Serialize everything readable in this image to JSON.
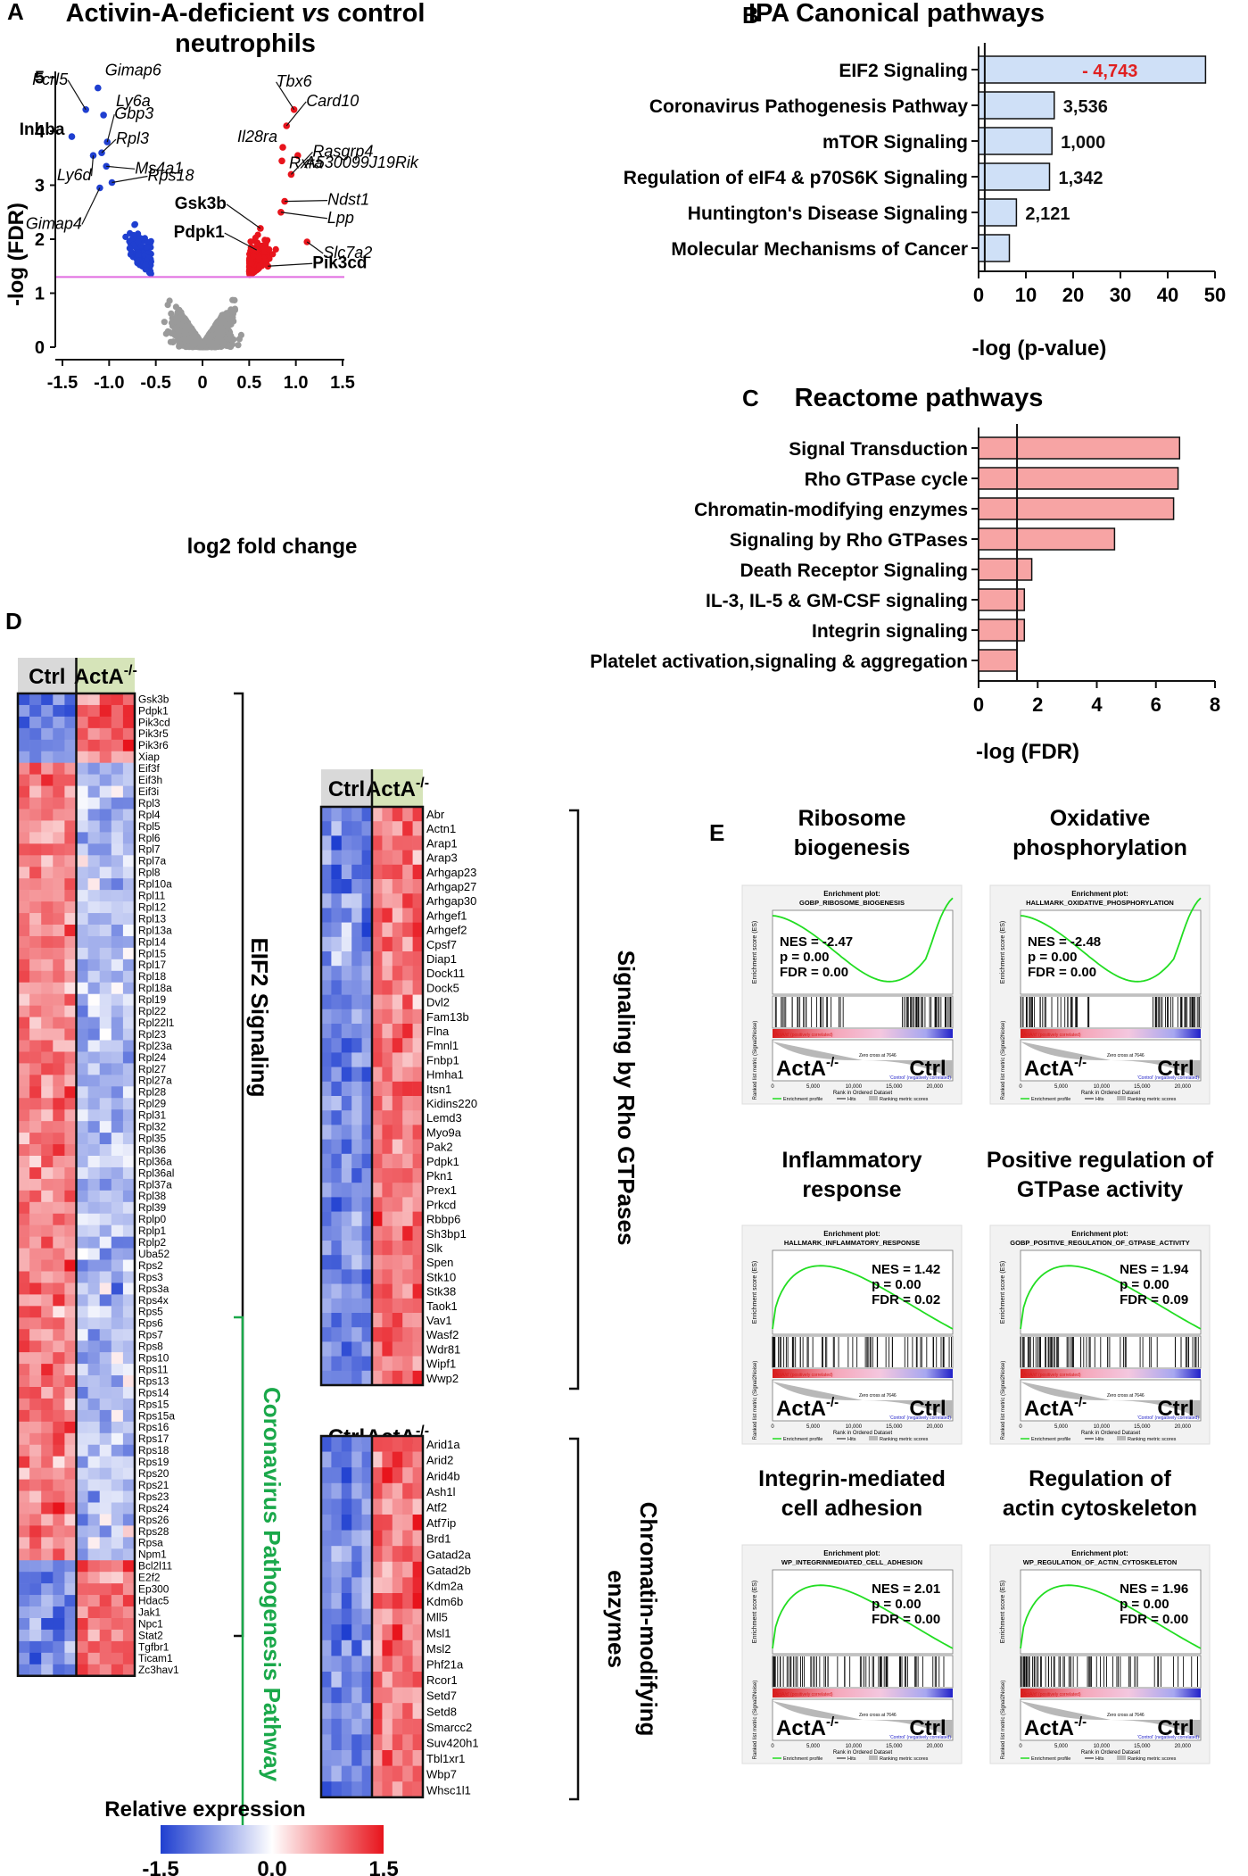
{
  "panels": {
    "A": {
      "letter": "A",
      "title_line1_pre": "Activin-A-deficient ",
      "title_line1_vs": "vs",
      "title_line1_post": " control",
      "title_line2": "neutrophils",
      "xlabel": "log2 fold change",
      "ylabel": "-log (FDR)",
      "xticks": [
        "-1.5",
        "-1.0",
        "-0.5",
        "0",
        "0.5",
        "1.0",
        "1.5"
      ],
      "yticks": [
        "0",
        "1",
        "2",
        "3",
        "4",
        "5"
      ]
    },
    "B": {
      "letter": "B",
      "title": "IPA Canonical pathways",
      "xlabel": "-log (p-value)",
      "xticks": [
        "0",
        "10",
        "20",
        "30",
        "40",
        "50"
      ]
    },
    "C": {
      "letter": "C",
      "title": "Reactome pathways",
      "xlabel": "-log (FDR)",
      "xticks": [
        "0",
        "2",
        "4",
        "6",
        "8"
      ]
    },
    "D": {
      "letter": "D",
      "ctrl": "Ctrl",
      "acta": "ActA",
      "acta_sup": "-/-",
      "eif2_label": "EIF2 Signaling",
      "corona_label": "Coronavirus Pathogenesis Pathway",
      "rho_label": "Signaling by Rho GTPases",
      "chrom_label_1": "Chromatin-modifying",
      "chrom_label_2": "enzymes",
      "legend_title": "Relative expression",
      "legend_ticks": [
        "-1.5",
        "0.0",
        "1.5"
      ]
    },
    "E": {
      "letter": "E"
    }
  },
  "chart_data": [
    {
      "type": "scatter",
      "title": "Activin-A-deficient vs control neutrophils",
      "xlabel": "log2 fold change",
      "ylabel": "-log (FDR)",
      "xlim": [
        -1.6,
        1.6
      ],
      "ylim": [
        0,
        5.1
      ],
      "threshold": 1.3,
      "labeled_genes": [
        {
          "name": "Gimap6",
          "x": -1.12,
          "y": 4.8,
          "bold": false
        },
        {
          "name": "Fcrl5",
          "x": -1.25,
          "y": 4.4,
          "bold": false
        },
        {
          "name": "Ly6a",
          "x": -1.06,
          "y": 4.3,
          "bold": false
        },
        {
          "name": "Inhba",
          "x": -1.4,
          "y": 3.9,
          "bold": true
        },
        {
          "name": "Gbp3",
          "x": -1.02,
          "y": 3.8,
          "bold": false
        },
        {
          "name": "Rpl3",
          "x": -1.08,
          "y": 3.6,
          "bold": false
        },
        {
          "name": "Ly6d",
          "x": -1.17,
          "y": 3.55,
          "bold": false
        },
        {
          "name": "Ms4a1",
          "x": -1.03,
          "y": 3.35,
          "bold": false
        },
        {
          "name": "Rps18",
          "x": -0.97,
          "y": 3.05,
          "bold": false
        },
        {
          "name": "Gimap4",
          "x": -1.1,
          "y": 2.95,
          "bold": false
        },
        {
          "name": "Tbx6",
          "x": 0.98,
          "y": 4.4,
          "bold": false
        },
        {
          "name": "Card10",
          "x": 0.9,
          "y": 4.1,
          "bold": false
        },
        {
          "name": "Il28ra",
          "x": 0.86,
          "y": 3.7,
          "bold": false
        },
        {
          "name": "A530099J19Rik",
          "x": 1.02,
          "y": 3.55,
          "bold": false
        },
        {
          "name": "Rxra",
          "x": 0.85,
          "y": 3.45,
          "bold": false
        },
        {
          "name": "Rasgrp4",
          "x": 0.95,
          "y": 3.2,
          "bold": false
        },
        {
          "name": "Ndst1",
          "x": 0.88,
          "y": 2.7,
          "bold": false
        },
        {
          "name": "Lpp",
          "x": 0.84,
          "y": 2.5,
          "bold": false
        },
        {
          "name": "Gsk3b",
          "x": 0.62,
          "y": 2.2,
          "bold": true
        },
        {
          "name": "Slc7a2",
          "x": 1.12,
          "y": 1.95,
          "bold": false
        },
        {
          "name": "Pdpk1",
          "x": 0.58,
          "y": 1.8,
          "bold": true
        },
        {
          "name": "Pik3cd",
          "x": 0.7,
          "y": 1.5,
          "bold": true
        }
      ]
    },
    {
      "type": "bar",
      "orientation": "horizontal",
      "title": "IPA Canonical pathways",
      "xlabel": "-log (p-value)",
      "xlim": [
        0,
        50
      ],
      "threshold": 1.3,
      "categories": [
        "EIF2 Signaling",
        "Coronavirus Pathogenesis Pathway",
        "mTOR Signaling",
        "Regulation of eIF4 & p70S6K Signaling",
        "Huntington's Disease Signaling",
        "Molecular Mechanisms of Cancer"
      ],
      "values": [
        48,
        16,
        15.5,
        15,
        8,
        6.5
      ],
      "zscores": [
        "- 4,743",
        "3,536",
        "1,000",
        "1,342",
        "2,121",
        ""
      ],
      "label_colors": [
        "#e02020",
        "#111",
        "#111",
        "#111",
        "#111",
        "#111"
      ]
    },
    {
      "type": "bar",
      "orientation": "horizontal",
      "title": "Reactome pathways",
      "xlabel": "-log (FDR)",
      "xlim": [
        0,
        8
      ],
      "threshold": 1.3,
      "categories": [
        "Signal Transduction",
        "Rho GTPase cycle",
        "Chromatin-modifying enzymes",
        "Signaling by Rho GTPases",
        "Death Receptor Signaling",
        "IL-3, IL-5 & GM-CSF signaling",
        "Integrin signaling",
        "Platelet activation,signaling & aggregation"
      ],
      "values": [
        6.8,
        6.75,
        6.6,
        4.6,
        1.8,
        1.55,
        1.55,
        1.3
      ]
    },
    {
      "type": "heatmap",
      "title": "EIF2 Signaling / Coronavirus Pathogenesis Pathway",
      "groups": [
        "Ctrl",
        "ActA-/-"
      ],
      "columns_per_group": 5,
      "scale": [
        -1.5,
        1.5
      ],
      "genes": [
        "Gsk3b",
        "Pdpk1",
        "Pik3cd",
        "Pik3r5",
        "Pik3r6",
        "Xiap",
        "Eif3f",
        "Eif3h",
        "Eif3i",
        "Rpl3",
        "Rpl4",
        "Rpl5",
        "Rpl6",
        "Rpl7",
        "Rpl7a",
        "Rpl8",
        "Rpl10a",
        "Rpl11",
        "Rpl12",
        "Rpl13",
        "Rpl13a",
        "Rpl14",
        "Rpl15",
        "Rpl17",
        "Rpl18",
        "Rpl18a",
        "Rpl19",
        "Rpl22",
        "Rpl22l1",
        "Rpl23",
        "Rpl23a",
        "Rpl24",
        "Rpl27",
        "Rpl27a",
        "Rpl28",
        "Rpl29",
        "Rpl31",
        "Rpl32",
        "Rpl35",
        "Rpl36",
        "Rpl36a",
        "Rpl36al",
        "Rpl37a",
        "Rpl38",
        "Rpl39",
        "Rplp0",
        "Rplp1",
        "Rplp2",
        "Uba52",
        "Rps2",
        "Rps3",
        "Rps3a",
        "Rps4x",
        "Rps5",
        "Rps6",
        "Rps7",
        "Rps8",
        "Rps10",
        "Rps11",
        "Rps13",
        "Rps14",
        "Rps15",
        "Rps15a",
        "Rps16",
        "Rps17",
        "Rps18",
        "Rps19",
        "Rps20",
        "Rps21",
        "Rps23",
        "Rps24",
        "Rps26",
        "Rps28",
        "Rpsa",
        "Npm1",
        "Bcl2l11",
        "E2f2",
        "Ep300",
        "Hdac5",
        "Jak1",
        "Npc1",
        "Stat2",
        "Tgfbr1",
        "Ticam1",
        "Zc3hav1"
      ],
      "up_in_acta": [
        0,
        1,
        2,
        3,
        4,
        5,
        75,
        76,
        77,
        78,
        79,
        80,
        81,
        82,
        83,
        84
      ]
    },
    {
      "type": "heatmap",
      "title": "Signaling by Rho GTPases",
      "groups": [
        "Ctrl",
        "ActA-/-"
      ],
      "columns_per_group": 5,
      "scale": [
        -1.5,
        1.5
      ],
      "genes": [
        "Abr",
        "Actn1",
        "Arap1",
        "Arap3",
        "Arhgap23",
        "Arhgap27",
        "Arhgap30",
        "Arhgef1",
        "Arhgef2",
        "Cpsf7",
        "Diap1",
        "Dock11",
        "Dock5",
        "Dvl2",
        "Fam13b",
        "Flna",
        "Fmnl1",
        "Fnbp1",
        "Hmha1",
        "Itsn1",
        "Kidins220",
        "Lemd3",
        "Myo9a",
        "Pak2",
        "Pdpk1",
        "Pkn1",
        "Prex1",
        "Prkcd",
        "Rbbp6",
        "Sh3bp1",
        "Slk",
        "Spen",
        "Stk10",
        "Stk38",
        "Taok1",
        "Vav1",
        "Wasf2",
        "Wdr81",
        "Wipf1",
        "Wwp2"
      ]
    },
    {
      "type": "heatmap",
      "title": "Chromatin-modifying enzymes",
      "groups": [
        "Ctrl",
        "ActA-/-"
      ],
      "columns_per_group": 5,
      "scale": [
        -1.5,
        1.5
      ],
      "genes": [
        "Arid1a",
        "Arid2",
        "Arid4b",
        "Ash1l",
        "Atf2",
        "Atf7ip",
        "Brd1",
        "Gatad2a",
        "Gatad2b",
        "Kdm2a",
        "Kdm6b",
        "Mll5",
        "Msl1",
        "Msl2",
        "Phf21a",
        "Rcor1",
        "Setd7",
        "Setd8",
        "Smarcc2",
        "Suv420h1",
        "Tbl1xr1",
        "Wbp7",
        "Whsc1l1"
      ]
    },
    {
      "type": "line",
      "title": "GSEA enrichment plots",
      "plots": [
        {
          "title1": "Ribosome",
          "title2": "biogenesis",
          "header": "Enrichment plot:",
          "name": "GOBP_RIBOSOME_BIOGENESIS",
          "nes": "NES = -2.47",
          "p": "p = 0.00",
          "fdr": "FDR = 0.00",
          "direction": "neg"
        },
        {
          "title1": "Oxidative",
          "title2": "phosphorylation",
          "header": "Enrichment plot:",
          "name": "HALLMARK_OXIDATIVE_PHOSPHORYLATION",
          "nes": "NES = -2.48",
          "p": "p = 0.00",
          "fdr": "FDR = 0.00",
          "direction": "neg"
        },
        {
          "title1": "Inflammatory",
          "title2": "response",
          "header": "Enrichment plot:",
          "name": "HALLMARK_INFLAMMATORY_RESPONSE",
          "nes": "NES = 1.42",
          "p": "p = 0.00",
          "fdr": "FDR = 0.02",
          "direction": "pos"
        },
        {
          "title1": "Positive regulation of",
          "title2": "GTPase activity",
          "header": "Enrichment plot:",
          "name": "GOBP_POSITIVE_REGULATION_OF_GTPASE_ACTIVITY",
          "nes": "NES = 1.94",
          "p": "p = 0.00",
          "fdr": "FDR = 0.09",
          "direction": "pos"
        },
        {
          "title1": "Integrin-mediated",
          "title2": "cell adhesion",
          "header": "Enrichment plot:",
          "name": "WP_INTEGRINMEDIATED_CELL_ADHESION",
          "nes": "NES = 2.01",
          "p": "p = 0.00",
          "fdr": "FDR = 0.00",
          "direction": "pos"
        },
        {
          "title1": "Regulation of",
          "title2": "actin cytoskeleton",
          "header": "Enrichment plot:",
          "name": "WP_REGULATION_OF_ACTIN_CYTOSKELETON",
          "nes": "NES = 1.96",
          "p": "p = 0.00",
          "fdr": "FDR = 0.00",
          "direction": "pos"
        }
      ],
      "left_group": "ActA",
      "left_sup": "-/-",
      "right_group": "Ctrl",
      "ylabel_es": "Enrichment score (ES)",
      "ylabel_rank": "Ranked list metric (Signal2Noise)",
      "xlabel_rank": "Rank in Ordered Dataset",
      "pos_corr": "'ActA/d' (positively correlated)",
      "neg_corr": "'Control' (negatively correlated)",
      "zero_cross": "Zero cross at 7646",
      "legend": [
        "Enrichment profile",
        "Hits",
        "Ranking metric scores"
      ],
      "rank_ticks": [
        "0",
        "5,000",
        "10,000",
        "15,000",
        "20,000"
      ]
    }
  ]
}
